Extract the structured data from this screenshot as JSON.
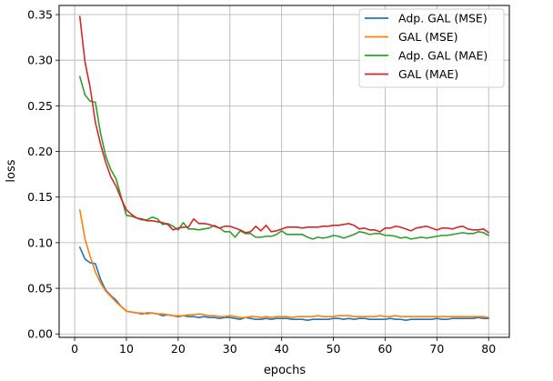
{
  "chart_data": {
    "type": "line",
    "title": "",
    "xlabel": "epochs",
    "ylabel": "loss",
    "xlim": [
      -3,
      84
    ],
    "ylim": [
      -0.00375,
      0.36
    ],
    "xticks": [
      0,
      10,
      20,
      30,
      40,
      50,
      60,
      70,
      80
    ],
    "xtick_labels": [
      "0",
      "10",
      "20",
      "30",
      "40",
      "50",
      "60",
      "70",
      "80"
    ],
    "yticks": [
      0.0,
      0.05,
      0.1,
      0.15,
      0.2,
      0.25,
      0.3,
      0.35
    ],
    "ytick_labels": [
      "0.00",
      "0.05",
      "0.10",
      "0.15",
      "0.20",
      "0.25",
      "0.30",
      "0.35"
    ],
    "grid": true,
    "legend_position": "upper right",
    "x": [
      1,
      2,
      3,
      4,
      5,
      6,
      7,
      8,
      9,
      10,
      11,
      12,
      13,
      14,
      15,
      16,
      17,
      18,
      19,
      20,
      21,
      22,
      23,
      24,
      25,
      26,
      27,
      28,
      29,
      30,
      31,
      32,
      33,
      34,
      35,
      36,
      37,
      38,
      39,
      40,
      41,
      42,
      43,
      44,
      45,
      46,
      47,
      48,
      49,
      50,
      51,
      52,
      53,
      54,
      55,
      56,
      57,
      58,
      59,
      60,
      61,
      62,
      63,
      64,
      65,
      66,
      67,
      68,
      69,
      70,
      71,
      72,
      73,
      74,
      75,
      76,
      77,
      78,
      79,
      80
    ],
    "series": [
      {
        "name": "Adp. GAL (MSE)",
        "color": "#1f77b4",
        "values": [
          0.095,
          0.082,
          0.078,
          0.077,
          0.06,
          0.048,
          0.042,
          0.037,
          0.03,
          0.025,
          0.024,
          0.023,
          0.022,
          0.023,
          0.023,
          0.022,
          0.02,
          0.021,
          0.02,
          0.019,
          0.02,
          0.019,
          0.019,
          0.018,
          0.019,
          0.018,
          0.018,
          0.017,
          0.018,
          0.018,
          0.017,
          0.016,
          0.018,
          0.017,
          0.016,
          0.016,
          0.017,
          0.016,
          0.017,
          0.017,
          0.017,
          0.016,
          0.016,
          0.016,
          0.015,
          0.016,
          0.016,
          0.016,
          0.016,
          0.017,
          0.017,
          0.016,
          0.017,
          0.016,
          0.017,
          0.017,
          0.016,
          0.016,
          0.016,
          0.016,
          0.017,
          0.016,
          0.016,
          0.015,
          0.016,
          0.016,
          0.016,
          0.016,
          0.016,
          0.017,
          0.016,
          0.016,
          0.017,
          0.017,
          0.017,
          0.017,
          0.017,
          0.018,
          0.017,
          0.017
        ]
      },
      {
        "name": "GAL (MSE)",
        "color": "#ff7f0e",
        "values": [
          0.136,
          0.104,
          0.085,
          0.068,
          0.056,
          0.047,
          0.041,
          0.035,
          0.03,
          0.025,
          0.024,
          0.023,
          0.023,
          0.022,
          0.023,
          0.022,
          0.022,
          0.021,
          0.02,
          0.02,
          0.02,
          0.021,
          0.021,
          0.022,
          0.021,
          0.02,
          0.02,
          0.019,
          0.019,
          0.02,
          0.019,
          0.018,
          0.018,
          0.019,
          0.019,
          0.018,
          0.019,
          0.018,
          0.019,
          0.019,
          0.019,
          0.018,
          0.019,
          0.019,
          0.019,
          0.019,
          0.02,
          0.019,
          0.019,
          0.019,
          0.02,
          0.02,
          0.02,
          0.019,
          0.019,
          0.019,
          0.019,
          0.019,
          0.02,
          0.019,
          0.019,
          0.02,
          0.019,
          0.019,
          0.019,
          0.019,
          0.019,
          0.019,
          0.019,
          0.019,
          0.019,
          0.019,
          0.019,
          0.019,
          0.019,
          0.019,
          0.019,
          0.019,
          0.019,
          0.018
        ]
      },
      {
        "name": "Adp. GAL (MAE)",
        "color": "#2ca02c",
        "values": [
          0.282,
          0.262,
          0.255,
          0.254,
          0.22,
          0.195,
          0.18,
          0.17,
          0.15,
          0.13,
          0.129,
          0.127,
          0.125,
          0.125,
          0.128,
          0.126,
          0.12,
          0.121,
          0.118,
          0.114,
          0.122,
          0.115,
          0.115,
          0.114,
          0.115,
          0.116,
          0.119,
          0.116,
          0.112,
          0.112,
          0.106,
          0.113,
          0.11,
          0.11,
          0.106,
          0.106,
          0.107,
          0.107,
          0.109,
          0.113,
          0.109,
          0.109,
          0.109,
          0.109,
          0.106,
          0.104,
          0.106,
          0.105,
          0.106,
          0.108,
          0.107,
          0.105,
          0.107,
          0.109,
          0.112,
          0.111,
          0.109,
          0.11,
          0.11,
          0.108,
          0.108,
          0.107,
          0.105,
          0.106,
          0.104,
          0.105,
          0.106,
          0.105,
          0.106,
          0.107,
          0.108,
          0.108,
          0.109,
          0.11,
          0.111,
          0.11,
          0.11,
          0.112,
          0.111,
          0.108
        ]
      },
      {
        "name": "GAL (MAE)",
        "color": "#d62728",
        "values": [
          0.348,
          0.298,
          0.27,
          0.232,
          0.208,
          0.188,
          0.172,
          0.162,
          0.148,
          0.136,
          0.131,
          0.127,
          0.126,
          0.124,
          0.124,
          0.123,
          0.122,
          0.12,
          0.114,
          0.116,
          0.117,
          0.117,
          0.126,
          0.121,
          0.121,
          0.12,
          0.118,
          0.116,
          0.118,
          0.118,
          0.116,
          0.114,
          0.111,
          0.112,
          0.118,
          0.113,
          0.119,
          0.112,
          0.113,
          0.115,
          0.117,
          0.117,
          0.117,
          0.116,
          0.117,
          0.117,
          0.117,
          0.118,
          0.118,
          0.119,
          0.119,
          0.12,
          0.121,
          0.119,
          0.115,
          0.116,
          0.114,
          0.114,
          0.112,
          0.116,
          0.116,
          0.118,
          0.117,
          0.115,
          0.113,
          0.116,
          0.117,
          0.118,
          0.116,
          0.114,
          0.116,
          0.116,
          0.115,
          0.117,
          0.118,
          0.115,
          0.114,
          0.114,
          0.115,
          0.111
        ]
      }
    ]
  }
}
